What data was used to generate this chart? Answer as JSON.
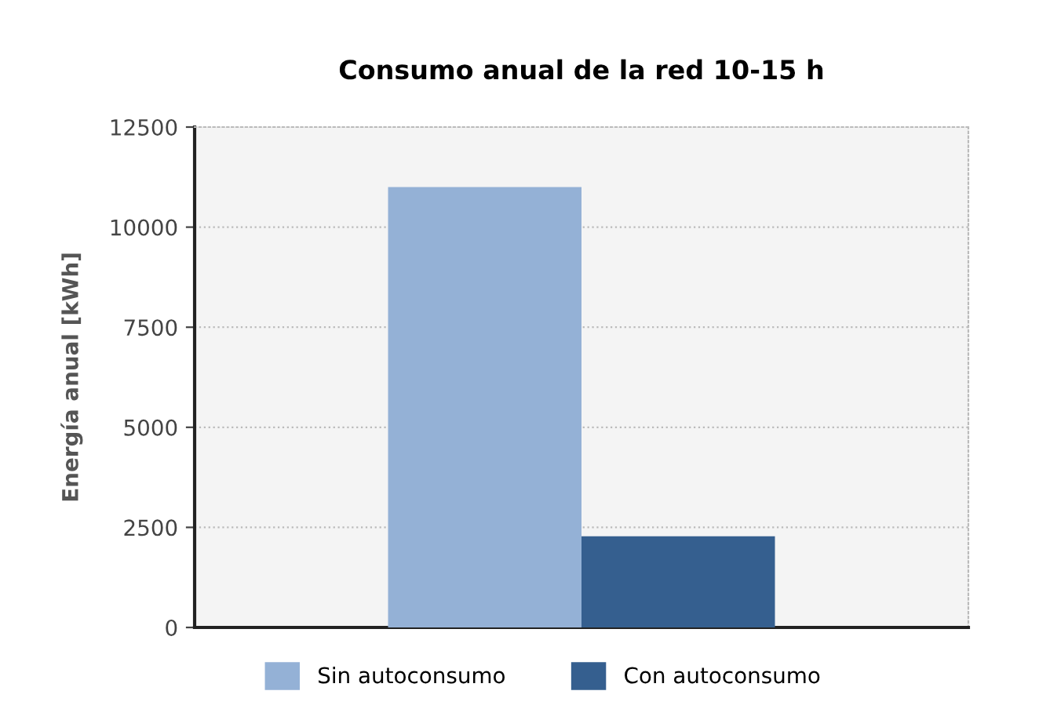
{
  "chart_data": {
    "type": "bar",
    "title": "Consumo anual de la red 10-15 h",
    "ylabel": "Energía anual [kWh]",
    "categories": [
      null
    ],
    "series": [
      {
        "name": "Sin autoconsumo",
        "color": "#94b1d6",
        "values": [
          11000
        ]
      },
      {
        "name": "Con autoconsumo",
        "color": "#355f8f",
        "values": [
          2280
        ]
      }
    ],
    "ylim": [
      0,
      12500
    ],
    "yticks": [
      0,
      2500,
      5000,
      7500,
      10000,
      12500
    ],
    "grid": "y",
    "legend": "bottom"
  }
}
